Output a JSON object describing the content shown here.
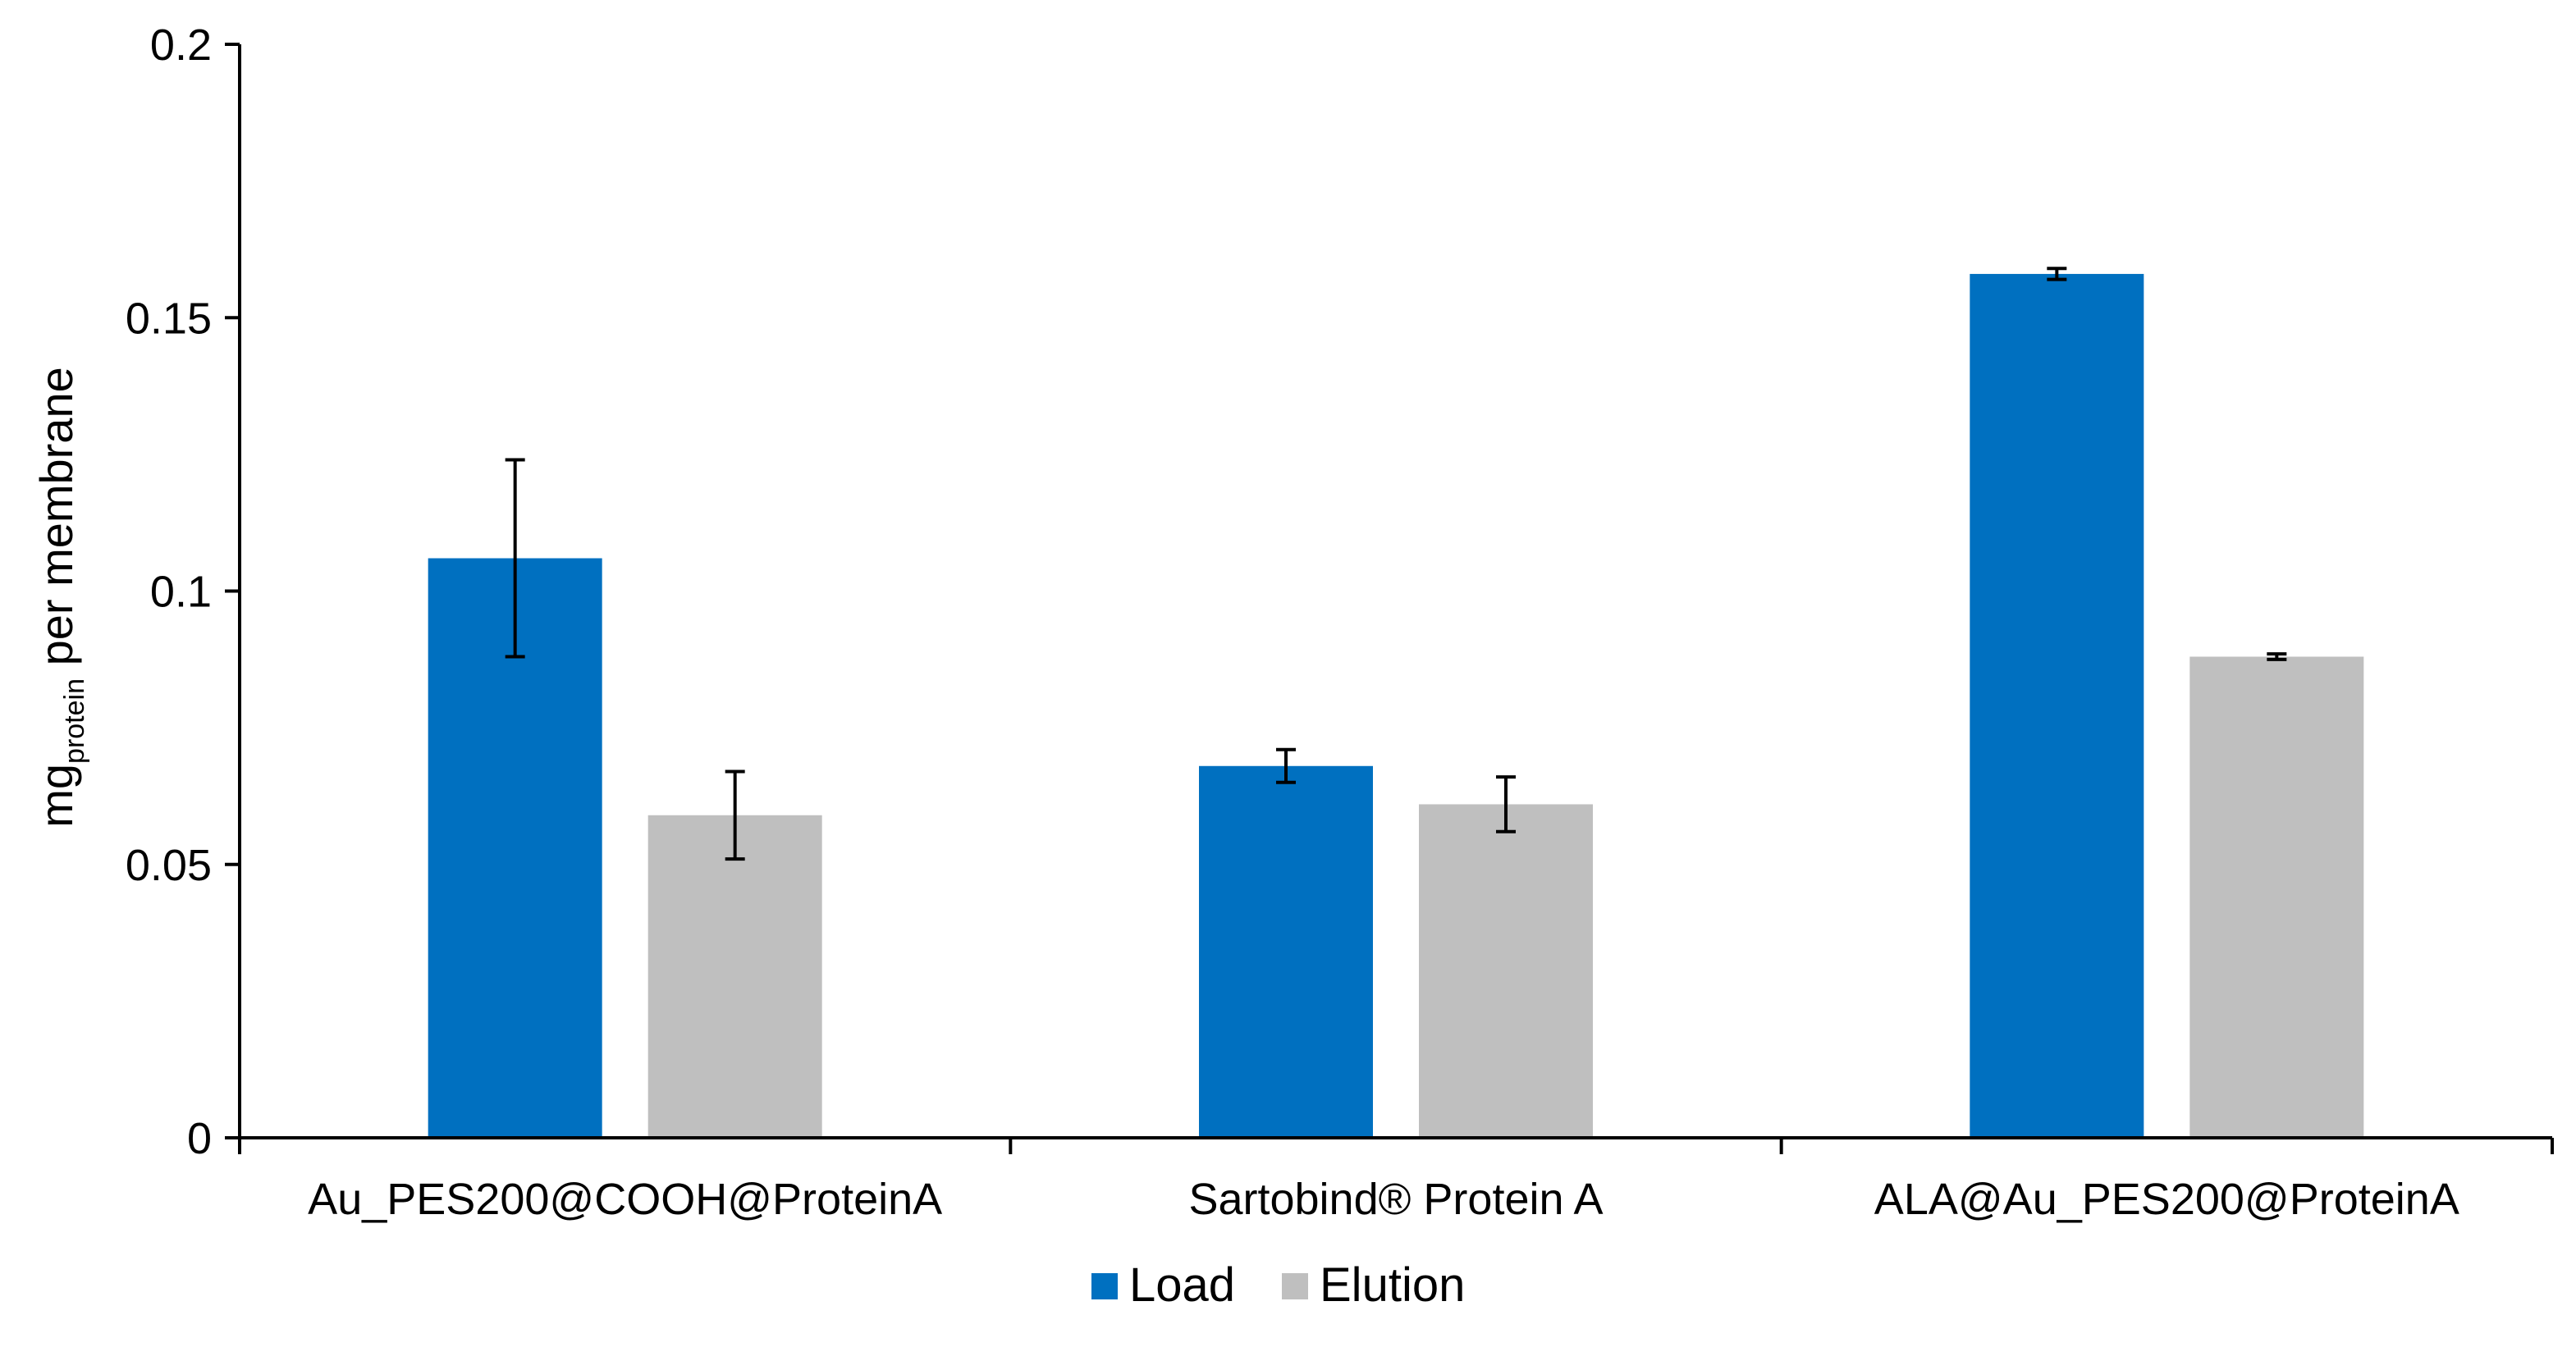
{
  "chart_data": {
    "type": "bar",
    "title": "",
    "xlabel": "",
    "ylabel": {
      "main": "mg",
      "subscript": "protein",
      "suffix": " per membrane"
    },
    "ylim": [
      0,
      0.2
    ],
    "yticks": [
      0,
      0.05,
      0.1,
      0.15,
      0.2
    ],
    "ytick_labels": [
      "0",
      "0.05",
      "0.1",
      "0.15",
      "0.2"
    ],
    "categories": [
      "Au_PES200@COOH@ProteinA",
      "Sartobind® Protein A",
      "ALA@Au_PES200@ProteinA"
    ],
    "series": [
      {
        "name": "Load",
        "color": "#0070C0",
        "values": [
          0.106,
          0.068,
          0.158
        ],
        "errors": [
          0.018,
          0.003,
          0.001
        ]
      },
      {
        "name": "Elution",
        "color": "#BFBFBF",
        "values": [
          0.059,
          0.061,
          0.088
        ],
        "errors": [
          0.008,
          0.005,
          0.0005
        ]
      }
    ],
    "legend_position": "bottom",
    "grid": false
  }
}
